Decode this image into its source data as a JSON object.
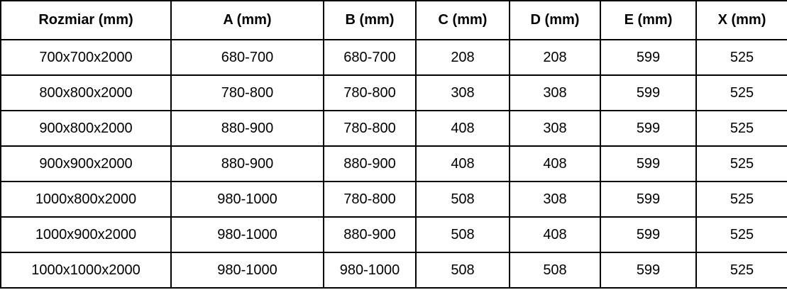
{
  "table": {
    "columns": [
      "Rozmiar (mm)",
      "A (mm)",
      "B (mm)",
      "C (mm)",
      "D (mm)",
      "E (mm)",
      "X (mm)"
    ],
    "rows": [
      [
        "700x700x2000",
        "680-700",
        "680-700",
        "208",
        "208",
        "599",
        "525"
      ],
      [
        "800x800x2000",
        "780-800",
        "780-800",
        "308",
        "308",
        "599",
        "525"
      ],
      [
        "900x800x2000",
        "880-900",
        "780-800",
        "408",
        "308",
        "599",
        "525"
      ],
      [
        "900x900x2000",
        "880-900",
        "880-900",
        "408",
        "408",
        "599",
        "525"
      ],
      [
        "1000x800x2000",
        "980-1000",
        "780-800",
        "508",
        "308",
        "599",
        "525"
      ],
      [
        "1000x900x2000",
        "980-1000",
        "880-900",
        "508",
        "408",
        "599",
        "525"
      ],
      [
        "1000x1000x2000",
        "980-1000",
        "980-1000",
        "508",
        "508",
        "599",
        "525"
      ]
    ]
  },
  "colors": {
    "border": "#000000",
    "text": "#000000",
    "background": "#ffffff"
  }
}
